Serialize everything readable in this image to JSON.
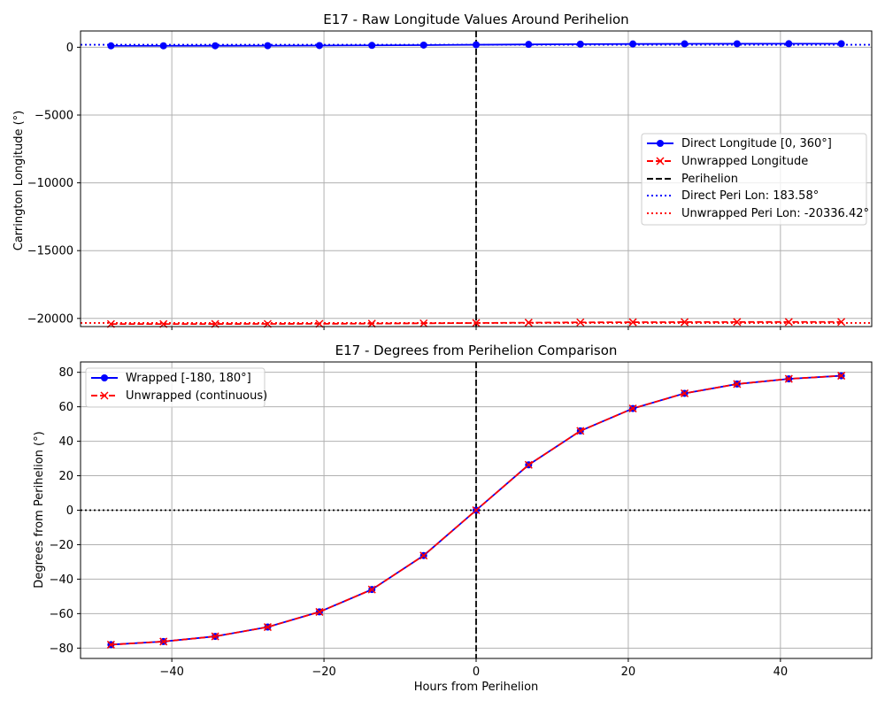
{
  "chart_data": [
    {
      "type": "line",
      "title": "E17 - Raw Longitude Values Around Perihelion",
      "xlabel": "",
      "ylabel": "Carrington Longitude (°)",
      "xlim": [
        -52,
        52
      ],
      "ylim": [
        -20600,
        1200
      ],
      "xticks": [
        -40,
        -20,
        0,
        20,
        40
      ],
      "yticks": [
        0,
        -5000,
        -10000,
        -15000,
        -20000
      ],
      "ytick_labels": [
        "0",
        "−5000",
        "−10000",
        "−15000",
        "−20000"
      ],
      "grid": true,
      "legend_position": "center-right",
      "x": [
        -48,
        -41.1,
        -34.3,
        -27.4,
        -20.6,
        -13.7,
        -6.9,
        0,
        6.9,
        13.7,
        20.6,
        27.4,
        34.3,
        41.1,
        48
      ],
      "series": [
        {
          "name": "Direct Longitude [0, 360°]",
          "color": "#0000ff",
          "style": "solid",
          "marker": "circle",
          "values": [
            105.6,
            107.4,
            110.4,
            115.8,
            124.6,
            137.6,
            157.3,
            183.6,
            209.9,
            229.6,
            242.6,
            251.4,
            256.8,
            259.8,
            261.6
          ]
        },
        {
          "name": "Unwrapped Longitude",
          "color": "#ff0000",
          "style": "dashed",
          "marker": "x",
          "values": [
            -20414.4,
            -20412.6,
            -20409.6,
            -20404.2,
            -20395.4,
            -20382.4,
            -20362.7,
            -20336.4,
            -20310.1,
            -20290.4,
            -20277.4,
            -20268.6,
            -20263.2,
            -20260.2,
            -20258.4
          ]
        }
      ],
      "lines": [
        {
          "name": "Perihelion",
          "orientation": "vertical",
          "value": 0,
          "color": "#000000",
          "style": "dashed"
        },
        {
          "name": "Direct Peri Lon: 183.58°",
          "orientation": "horizontal",
          "value": 183.58,
          "color": "#0000ff",
          "style": "dotted"
        },
        {
          "name": "Unwrapped Peri Lon: -20336.42°",
          "orientation": "horizontal",
          "value": -20336.42,
          "color": "#ff0000",
          "style": "dotted"
        }
      ]
    },
    {
      "type": "line",
      "title": "E17 - Degrees from Perihelion Comparison",
      "xlabel": "Hours from Perihelion",
      "ylabel": "Degrees from Perihelion (°)",
      "xlim": [
        -52,
        52
      ],
      "ylim": [
        -86,
        86
      ],
      "xticks": [
        -40,
        -20,
        0,
        20,
        40
      ],
      "xtick_labels": [
        "−40",
        "−20",
        "0",
        "20",
        "40"
      ],
      "yticks": [
        80,
        60,
        40,
        20,
        0,
        -20,
        -40,
        -60,
        -80
      ],
      "ytick_labels": [
        "80",
        "60",
        "40",
        "20",
        "0",
        "−20",
        "−40",
        "−60",
        "−80"
      ],
      "grid": true,
      "legend_position": "upper-left",
      "x": [
        -48,
        -41.1,
        -34.3,
        -27.4,
        -20.6,
        -13.7,
        -6.9,
        0,
        6.9,
        13.7,
        20.6,
        27.4,
        34.3,
        41.1,
        48
      ],
      "series": [
        {
          "name": "Wrapped [-180, 180°]",
          "color": "#0000ff",
          "style": "solid",
          "marker": "circle",
          "values": [
            -78,
            -76.2,
            -73.2,
            -67.8,
            -59,
            -46,
            -26.3,
            0,
            26.3,
            46,
            59,
            67.8,
            73.2,
            76.2,
            78
          ]
        },
        {
          "name": "Unwrapped (continuous)",
          "color": "#ff0000",
          "style": "dashed",
          "marker": "x",
          "values": [
            -78,
            -76.2,
            -73.2,
            -67.8,
            -59,
            -46,
            -26.3,
            0,
            26.3,
            46,
            59,
            67.8,
            73.2,
            76.2,
            78
          ]
        }
      ],
      "lines": [
        {
          "name": "Perihelion",
          "orientation": "vertical",
          "value": 0,
          "color": "#000000",
          "style": "dashed"
        },
        {
          "name": "zero-line",
          "orientation": "horizontal",
          "value": 0,
          "color": "#000000",
          "style": "dotted"
        }
      ]
    }
  ]
}
